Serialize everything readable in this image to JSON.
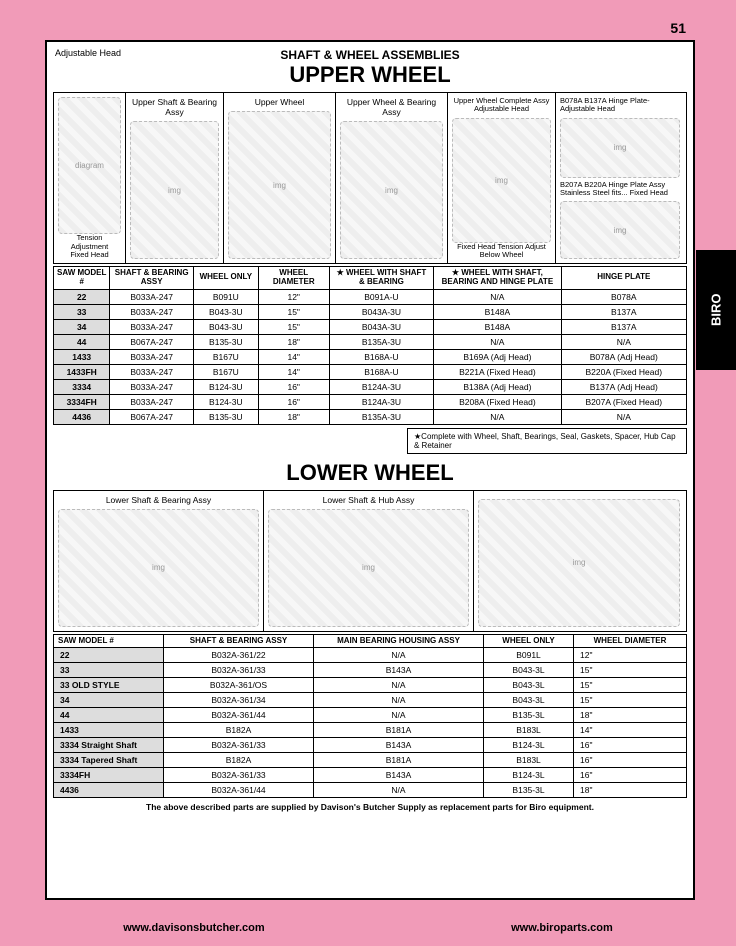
{
  "page_number": "51",
  "side_tab": "BIRO",
  "adjustable_head_label": "Adjustable Head",
  "heading_small": "SHAFT &  WHEEL ASSEMBLIES",
  "heading_upper": "UPPER WHEEL",
  "heading_lower": "LOWER WHEEL",
  "upper_img_labels": {
    "c0a": "Tension Adjustment",
    "c0b": "Fixed Head",
    "c0c": "Tension Adjustment",
    "c1": "Upper Shaft & Bearing Assy",
    "c2": "Upper Wheel",
    "c3": "Upper Wheel & Bearing Assy",
    "c4": "Upper Wheel Complete Assy Adjustable Head",
    "c4b": "Fixed Head  Tension Adjust Below Wheel",
    "c5a": "B078A B137A Hinge Plate-Adjustable Head",
    "c5b": "B207A B220A Hinge Plate Assy Stainless Steel fits... Fixed Head"
  },
  "upper_headers": [
    "SAW MODEL #",
    "SHAFT & BEARING ASSY",
    "WHEEL ONLY",
    "WHEEL DIAMETER",
    "★ WHEEL WITH SHAFT & BEARING",
    "★ WHEEL WITH SHAFT, BEARING AND HINGE PLATE",
    "HINGE PLATE"
  ],
  "upper_rows": [
    [
      "22",
      "B033A-247",
      "B091U",
      "12\"",
      "B091A-U",
      "N/A",
      "B078A"
    ],
    [
      "33",
      "B033A-247",
      "B043-3U",
      "15\"",
      "B043A-3U",
      "B148A",
      "B137A"
    ],
    [
      "34",
      "B033A-247",
      "B043-3U",
      "15\"",
      "B043A-3U",
      "B148A",
      "B137A"
    ],
    [
      "44",
      "B067A-247",
      "B135-3U",
      "18\"",
      "B135A-3U",
      "N/A",
      "N/A"
    ],
    [
      "1433",
      "B033A-247",
      "B167U",
      "14\"",
      "B168A-U",
      "B169A (Adj Head)",
      "B078A (Adj Head)"
    ],
    [
      "1433FH",
      "B033A-247",
      "B167U",
      "14\"",
      "B168A-U",
      "B221A (Fixed Head)",
      "B220A (Fixed Head)"
    ],
    [
      "3334",
      "B033A-247",
      "B124-3U",
      "16\"",
      "B124A-3U",
      "B138A (Adj Head)",
      "B137A (Adj Head)"
    ],
    [
      "3334FH",
      "B033A-247",
      "B124-3U",
      "16\"",
      "B124A-3U",
      "B208A (Fixed Head)",
      "B207A (Fixed Head)"
    ],
    [
      "4436",
      "B067A-247",
      "B135-3U",
      "18\"",
      "B135A-3U",
      "N/A",
      "N/A"
    ]
  ],
  "upper_note": "★Complete with Wheel, Shaft, Bearings, Seal, Gaskets, Spacer, Hub Cap & Retainer",
  "lower_img_labels": {
    "c1": "Lower Shaft & Bearing Assy",
    "c2": "Lower Shaft & Hub Assy",
    "c3": ""
  },
  "lower_headers": [
    "SAW MODEL #",
    "SHAFT & BEARING ASSY",
    "MAIN BEARING HOUSING ASSY",
    "WHEEL ONLY",
    "WHEEL DIAMETER"
  ],
  "lower_rows": [
    [
      "22",
      "B032A-361/22",
      "N/A",
      "B091L",
      "12\""
    ],
    [
      "33",
      "B032A-361/33",
      "B143A",
      "B043-3L",
      "15\""
    ],
    [
      "33 OLD STYLE",
      "B032A-361/OS",
      "N/A",
      "B043-3L",
      "15\""
    ],
    [
      "34",
      "B032A-361/34",
      "N/A",
      "B043-3L",
      "15\""
    ],
    [
      "44",
      "B032A-361/44",
      "N/A",
      "B135-3L",
      "18\""
    ],
    [
      "1433",
      "B182A",
      "B181A",
      "B183L",
      "14\""
    ],
    [
      "3334 Straight Shaft",
      "B032A-361/33",
      "B143A",
      "B124-3L",
      "16\""
    ],
    [
      "3334 Tapered Shaft",
      "B182A",
      "B181A",
      "B183L",
      "16\""
    ],
    [
      "3334FH",
      "B032A-361/33",
      "B143A",
      "B124-3L",
      "16\""
    ],
    [
      "4436",
      "B032A-361/44",
      "N/A",
      "B135-3L",
      "18\""
    ]
  ],
  "footer_note": "The above described parts are supplied by Davison's Butcher Supply as replacement parts for Biro equipment.",
  "link_left": "www.davisonsbutcher.com",
  "link_right": "www.biroparts.com"
}
